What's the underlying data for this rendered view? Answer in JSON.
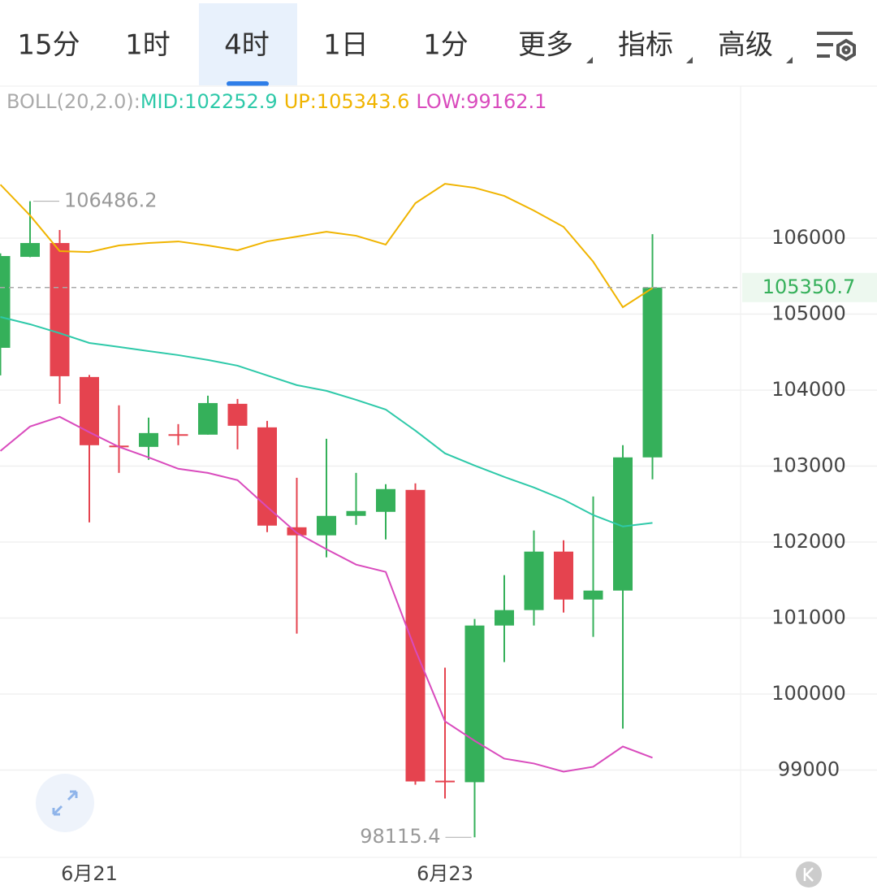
{
  "tabs": [
    "15分",
    "1时",
    "4时",
    "1日",
    "1分",
    "更多",
    "指标",
    "高级"
  ],
  "active_tab": 2,
  "chart_data": {
    "type": "candlestick",
    "indicator": "BOLL(20,2.0):",
    "separator": ":",
    "categories": [
      null,
      null,
      null,
      "6月21",
      null,
      null,
      null,
      null,
      null,
      null,
      null,
      null,
      null,
      null,
      null,
      "6月23",
      null,
      null,
      null,
      null,
      null,
      null,
      null
    ],
    "open": [
      104557,
      105754,
      105936,
      104173,
      103270,
      103253,
      103420,
      103414,
      103820,
      103510,
      102195,
      102089,
      102345,
      102398,
      102687,
      98860,
      98840,
      100902,
      101105,
      101875,
      101244,
      101362,
      103115
    ],
    "high": [
      105800,
      106486.2,
      106107,
      104200,
      103800,
      103638,
      103553,
      103927,
      103884,
      103595,
      102847,
      103360,
      102911,
      102762,
      102773,
      100347,
      100988,
      101565,
      102153,
      102024,
      102601,
      103275,
      106053
    ],
    "low": [
      104194,
      105750,
      103820,
      102260,
      102911,
      103082,
      103275,
      103414,
      103221,
      102131,
      100796,
      101800,
      102227,
      102035,
      98807,
      98626,
      98115.4,
      100421,
      100902,
      101073,
      100753,
      99545,
      102826
    ],
    "close": [
      105765,
      105936,
      104183,
      103275,
      103260,
      103435,
      103410,
      103830,
      103531,
      102217,
      102089,
      102345,
      102409,
      102698,
      98850,
      98850,
      100902,
      101105,
      101875,
      101244,
      101362,
      103115,
      105350.7
    ],
    "up_color": "#35b05a",
    "down_color": "#e5434f",
    "series": [
      {
        "name": "MID",
        "color": "#2ec9a9",
        "values": [
          104963,
          104867,
          104750,
          104621,
          104568,
          104514,
          104461,
          104397,
          104322,
          104194,
          104066,
          103991,
          103873,
          103745,
          103467,
          103168,
          103008,
          102858,
          102719,
          102559,
          102356,
          102206,
          102252.9
        ]
      },
      {
        "name": "UP",
        "color": "#f0b400",
        "values": [
          106705,
          106299,
          105829,
          105818,
          105904,
          105936,
          105957,
          105904,
          105840,
          105957,
          106021,
          106085,
          106032,
          105915,
          106460,
          106716,
          106663,
          106556,
          106363,
          106149,
          105690,
          105092,
          105343.6
        ]
      },
      {
        "name": "LOW",
        "color": "#d94bbd",
        "values": [
          103200,
          103521,
          103649,
          103446,
          103253,
          103115,
          102965,
          102911,
          102815,
          102463,
          102121,
          101907,
          101704,
          101608,
          100582,
          99641,
          99385,
          99150,
          99086,
          98979,
          99043,
          99310,
          99162.1
        ]
      }
    ],
    "ylim": [
      97850,
      107990
    ],
    "yticks": [
      99000,
      100000,
      101000,
      102000,
      103000,
      104000,
      105000,
      106000
    ],
    "grid": true
  }
}
